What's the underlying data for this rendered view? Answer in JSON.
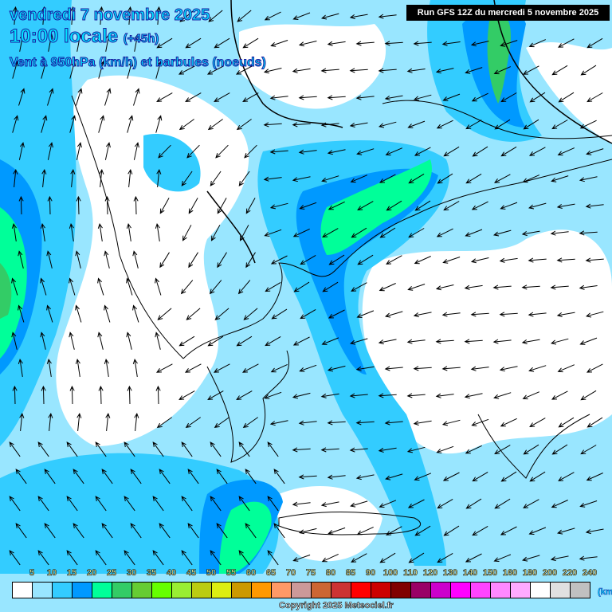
{
  "header": {
    "date": "vendredi 7 novembre 2025",
    "time": "10:00 locale",
    "lead": "(+45h)",
    "field": "Vent à 950hPa (km/h) et barbules (noeuds)",
    "run": "Run GFS 12Z du mercredi 5 novembre 2025"
  },
  "legend": {
    "labels": [
      "5",
      "10",
      "15",
      "20",
      "25",
      "30",
      "35",
      "40",
      "45",
      "50",
      "55",
      "60",
      "65",
      "70",
      "75",
      "80",
      "85",
      "90",
      "100",
      "110",
      "120",
      "130",
      "140",
      "150",
      "160",
      "180",
      "200",
      "220",
      "240"
    ],
    "colors": [
      "#ffffff",
      "#99e6ff",
      "#33ccff",
      "#0099ff",
      "#00ff99",
      "#33cc66",
      "#66cc33",
      "#66ff00",
      "#99ee33",
      "#bbcc11",
      "#ddee11",
      "#cc9900",
      "#ff9900",
      "#ff9966",
      "#cc9999",
      "#cc6633",
      "#cc3333",
      "#ff0000",
      "#cc0000",
      "#800000",
      "#990066",
      "#cc00cc",
      "#ff00ff",
      "#ff44ff",
      "#ff88ff",
      "#ffaaff",
      "#ffffff",
      "#e0e0e0",
      "#c0c0c0"
    ],
    "unit": "(km/h)"
  },
  "copyright": "Copyright 2025 Meteociel.fr",
  "map_colors": {
    "light": "#99e6ff",
    "medium": "#33ccff",
    "strong": "#0099ff",
    "green": "#00ff99",
    "darkgreen": "#33cc66",
    "calm": "#ffffff"
  }
}
